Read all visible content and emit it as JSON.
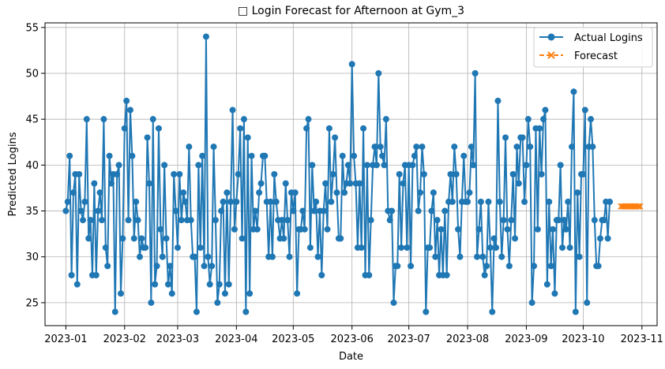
{
  "chart_data": {
    "type": "line",
    "title": "□ Login Forecast for Afternoon at Gym_3",
    "xlabel": "Date",
    "ylabel": "Predicted Logins",
    "x_type": "date",
    "xlim": [
      "2022-12-21",
      "2023-11-09"
    ],
    "ylim": [
      22.5,
      55.5
    ],
    "x_ticks": [
      "2023-01-01",
      "2023-02-01",
      "2023-03-01",
      "2023-04-01",
      "2023-05-01",
      "2023-06-01",
      "2023-07-01",
      "2023-08-01",
      "2023-09-01",
      "2023-10-01",
      "2023-11-01"
    ],
    "x_tick_labels": [
      "2023-01",
      "2023-02",
      "2023-03",
      "2023-04",
      "2023-05",
      "2023-06",
      "2023-07",
      "2023-08",
      "2023-09",
      "2023-10",
      "2023-11"
    ],
    "y_ticks": [
      25,
      30,
      35,
      40,
      45,
      50,
      55
    ],
    "grid": true,
    "legend_position": "upper right",
    "x_start": "2023-01-01",
    "series": [
      {
        "name": "Actual Logins",
        "marker": "circle",
        "color": "#1f77b4",
        "values": [
          35,
          36,
          41,
          28,
          37,
          39,
          27,
          39,
          35,
          34,
          36,
          45,
          32,
          34,
          28,
          38,
          28,
          35,
          37,
          34,
          45,
          31,
          29,
          41,
          38,
          39,
          24,
          39,
          40,
          26,
          32,
          44,
          47,
          34,
          46,
          41,
          32,
          36,
          34,
          30,
          32,
          31,
          31,
          43,
          38,
          25,
          45,
          27,
          29,
          44,
          33,
          30,
          40,
          32,
          27,
          29,
          26,
          39,
          35,
          31,
          39,
          34,
          37,
          36,
          34,
          42,
          34,
          30,
          30,
          24,
          40,
          31,
          41,
          29,
          54,
          30,
          27,
          29,
          42,
          34,
          25,
          27,
          35,
          36,
          26,
          37,
          27,
          36,
          46,
          33,
          36,
          39,
          44,
          32,
          45,
          24,
          43,
          26,
          41,
          33,
          35,
          33,
          37,
          38,
          41,
          41,
          36,
          30,
          36,
          30,
          39,
          36,
          34,
          32,
          34,
          32,
          38,
          34,
          30,
          37,
          35,
          37,
          26,
          33,
          33,
          35,
          33,
          44,
          45,
          31,
          40,
          35,
          36,
          30,
          35,
          28,
          35,
          38,
          33,
          44,
          36,
          39,
          43,
          37,
          32,
          32,
          41,
          37,
          38,
          40,
          38,
          51,
          41,
          38,
          31,
          38,
          31,
          44,
          28,
          40,
          28,
          34,
          40,
          42,
          40,
          50,
          42,
          41,
          40,
          45,
          35,
          34,
          35,
          25,
          29,
          29,
          39,
          31,
          38,
          40,
          31,
          40,
          29,
          40,
          41,
          42,
          35,
          37,
          42,
          39,
          24,
          31,
          31,
          35,
          37,
          30,
          34,
          28,
          33,
          28,
          35,
          28,
          36,
          39,
          36,
          42,
          39,
          33,
          30,
          36,
          41,
          36,
          36,
          37,
          42,
          40,
          50,
          30,
          33,
          36,
          30,
          28,
          29,
          36,
          31,
          24,
          32,
          31,
          47,
          36,
          30,
          34,
          43,
          33,
          29,
          34,
          39,
          32,
          42,
          38,
          43,
          43,
          36,
          40,
          45,
          42,
          25,
          29,
          44,
          33,
          44,
          39,
          45,
          46,
          27,
          36,
          29,
          33,
          26,
          34,
          34,
          40,
          31,
          34,
          33,
          36,
          31,
          42,
          48,
          24,
          37,
          30,
          39,
          39,
          46,
          25,
          42,
          45,
          42,
          34,
          29,
          29,
          32,
          34,
          34,
          36,
          32,
          36
        ],
        "last_date": "2023-10-20"
      },
      {
        "name": "Forecast",
        "marker": "x",
        "color": "#ff7f0e",
        "start_date": "2023-10-21",
        "values": [
          35.5,
          35.5,
          35.5,
          35.5,
          35.5,
          35.5,
          35.5,
          35.5,
          35.5,
          35.5,
          35.5
        ]
      }
    ]
  }
}
